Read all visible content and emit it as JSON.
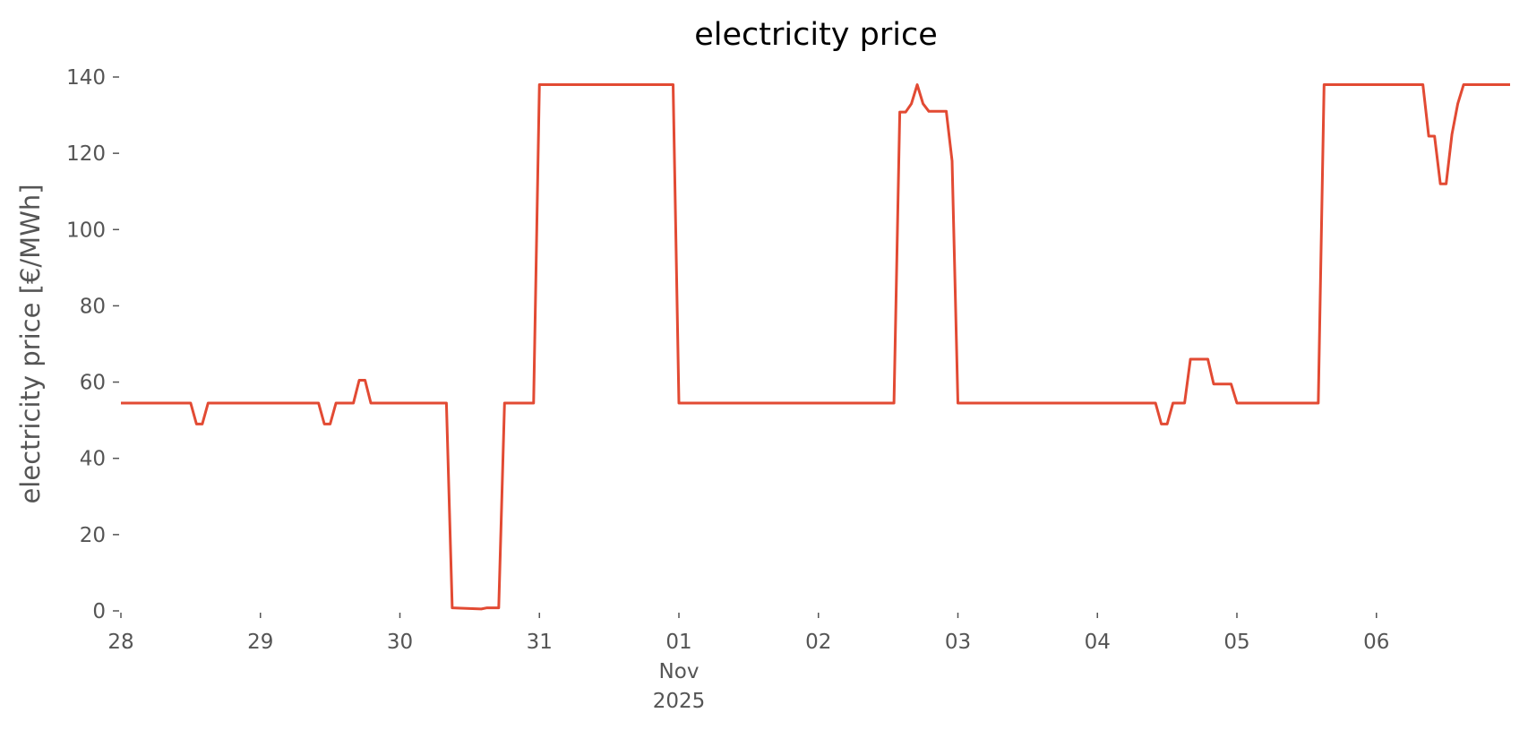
{
  "chart_data": {
    "type": "line",
    "title": "electricity price",
    "ylabel": "electricity price [€/MWh]",
    "x": [
      "2025-10-28T00:00",
      "2025-10-28T12:00",
      "2025-10-28T13:00",
      "2025-10-28T14:00",
      "2025-10-28T15:00",
      "2025-10-29T10:00",
      "2025-10-29T11:00",
      "2025-10-29T12:00",
      "2025-10-29T13:00",
      "2025-10-29T16:00",
      "2025-10-29T17:00",
      "2025-10-29T18:00",
      "2025-10-29T19:00",
      "2025-10-30T08:00",
      "2025-10-30T09:00",
      "2025-10-30T14:00",
      "2025-10-30T15:00",
      "2025-10-30T17:00",
      "2025-10-30T18:00",
      "2025-10-30T23:00",
      "2025-10-31T00:00",
      "2025-10-31T23:00",
      "2025-11-01T00:00",
      "2025-11-02T13:00",
      "2025-11-02T14:00",
      "2025-11-02T15:00",
      "2025-11-02T16:00",
      "2025-11-02T17:00",
      "2025-11-02T18:00",
      "2025-11-02T19:00",
      "2025-11-02T22:00",
      "2025-11-02T23:00",
      "2025-11-03T00:00",
      "2025-11-04T10:00",
      "2025-11-04T11:00",
      "2025-11-04T12:00",
      "2025-11-04T13:00",
      "2025-11-04T15:00",
      "2025-11-04T16:00",
      "2025-11-04T19:00",
      "2025-11-04T20:00",
      "2025-11-04T23:00",
      "2025-11-05T00:00",
      "2025-11-05T14:00",
      "2025-11-05T15:00",
      "2025-11-06T08:00",
      "2025-11-06T09:00",
      "2025-11-06T10:00",
      "2025-11-06T11:00",
      "2025-11-06T12:00",
      "2025-11-06T13:00",
      "2025-11-06T14:00",
      "2025-11-06T15:00",
      "2025-11-06T23:00"
    ],
    "series": [
      {
        "name": "electricity price",
        "color": "#E24A33",
        "values": [
          54.5,
          54.5,
          49,
          49,
          54.5,
          54.5,
          49,
          49,
          54.5,
          54.5,
          60.5,
          60.5,
          54.5,
          54.5,
          0.8,
          0.5,
          0.8,
          0.8,
          54.5,
          54.5,
          138,
          138,
          54.5,
          54.5,
          130.8,
          130.8,
          133,
          138,
          133,
          131,
          131,
          118,
          54.5,
          54.5,
          49,
          49,
          54.5,
          54.5,
          66,
          66,
          59.5,
          59.5,
          54.5,
          54.5,
          138,
          138,
          124.5,
          124.5,
          112,
          112,
          125,
          133,
          138,
          138
        ]
      }
    ],
    "xlim": [
      "2025-10-28T00:00",
      "2025-11-06T23:00"
    ],
    "xticks": [
      {
        "value": "2025-10-28T00:00",
        "label": "28"
      },
      {
        "value": "2025-10-29T00:00",
        "label": "29"
      },
      {
        "value": "2025-10-30T00:00",
        "label": "30"
      },
      {
        "value": "2025-10-31T00:00",
        "label": "31"
      },
      {
        "value": "2025-11-01T00:00",
        "label": "01\nNov\n2025"
      },
      {
        "value": "2025-11-02T00:00",
        "label": "02"
      },
      {
        "value": "2025-11-03T00:00",
        "label": "03"
      },
      {
        "value": "2025-11-04T00:00",
        "label": "04"
      },
      {
        "value": "2025-11-05T00:00",
        "label": "05"
      },
      {
        "value": "2025-11-06T00:00",
        "label": "06"
      }
    ],
    "ylim": [
      0,
      140
    ],
    "yticks": [
      0,
      20,
      40,
      60,
      80,
      100,
      120,
      140
    ],
    "grid": false
  }
}
